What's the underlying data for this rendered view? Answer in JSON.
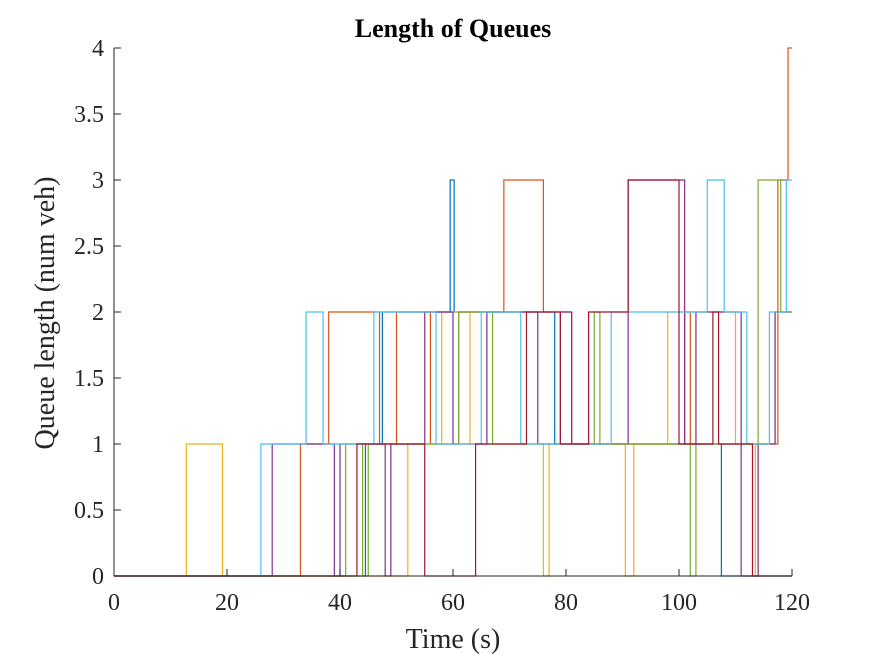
{
  "chart_data": {
    "type": "line",
    "title": "Length of Queues",
    "xlabel": "Time (s)",
    "ylabel": "Queue length (num veh)",
    "xlim": [
      0,
      120
    ],
    "ylim": [
      0,
      4
    ],
    "xticks": [
      0,
      20,
      40,
      60,
      80,
      100,
      120
    ],
    "yticks": [
      0,
      0.5,
      1,
      1.5,
      2,
      2.5,
      3,
      3.5,
      4
    ],
    "xtick_labels": [
      "0",
      "20",
      "40",
      "60",
      "80",
      "100",
      "120"
    ],
    "ytick_labels": [
      "0",
      "0.5",
      "1",
      "1.5",
      "2",
      "2.5",
      "3",
      "3.5",
      "4"
    ],
    "grid": false,
    "legend": "none",
    "step": true,
    "series": [
      {
        "color": "#0072BD",
        "points": [
          [
            0,
            0
          ],
          [
            44.5,
            0
          ],
          [
            44.5,
            1
          ],
          [
            47.5,
            1
          ],
          [
            47.5,
            2
          ],
          [
            59.5,
            2
          ],
          [
            59.5,
            3
          ],
          [
            60.2,
            3
          ],
          [
            60.2,
            2
          ],
          [
            78,
            2
          ],
          [
            78,
            1
          ],
          [
            107.5,
            1
          ],
          [
            107.5,
            0
          ],
          [
            120,
            0
          ]
        ]
      },
      {
        "color": "#D95319",
        "points": [
          [
            0,
            0
          ],
          [
            33,
            0
          ],
          [
            33,
            1
          ],
          [
            38,
            1
          ],
          [
            38,
            2
          ],
          [
            47,
            2
          ],
          [
            47,
            1
          ],
          [
            50,
            1
          ],
          [
            50,
            2
          ],
          [
            56,
            2
          ],
          [
            56,
            1
          ],
          [
            61,
            1
          ],
          [
            61,
            2
          ],
          [
            69,
            2
          ],
          [
            69,
            3
          ],
          [
            76,
            3
          ],
          [
            76,
            2
          ],
          [
            81,
            2
          ],
          [
            81,
            1
          ],
          [
            101,
            1
          ],
          [
            101,
            2
          ],
          [
            102,
            2
          ],
          [
            102,
            1
          ],
          [
            117.5,
            1
          ],
          [
            117.5,
            3
          ],
          [
            119.3,
            3
          ],
          [
            119.3,
            4
          ],
          [
            120,
            4
          ]
        ]
      },
      {
        "color": "#EDB120",
        "points": [
          [
            0,
            0
          ],
          [
            12.8,
            0
          ],
          [
            12.8,
            1
          ],
          [
            19.2,
            1
          ],
          [
            19.2,
            0
          ],
          [
            52,
            0
          ],
          [
            52,
            1
          ],
          [
            58,
            1
          ],
          [
            58,
            2
          ],
          [
            63,
            2
          ],
          [
            63,
            1
          ],
          [
            76,
            1
          ],
          [
            76,
            0
          ],
          [
            77,
            0
          ],
          [
            77,
            1
          ],
          [
            90.5,
            1
          ],
          [
            90.5,
            0
          ],
          [
            92,
            0
          ],
          [
            92,
            1
          ],
          [
            98,
            1
          ],
          [
            98,
            2
          ],
          [
            110,
            2
          ],
          [
            110,
            1
          ],
          [
            113.5,
            1
          ],
          [
            113.5,
            0
          ],
          [
            114,
            0
          ],
          [
            114,
            1
          ],
          [
            117,
            1
          ],
          [
            117,
            2
          ],
          [
            120,
            2
          ]
        ]
      },
      {
        "color": "#7E2F8E",
        "points": [
          [
            0,
            0
          ],
          [
            28,
            0
          ],
          [
            28,
            1
          ],
          [
            39,
            1
          ],
          [
            39,
            0
          ],
          [
            40,
            0
          ],
          [
            40,
            1
          ],
          [
            48,
            1
          ],
          [
            48,
            0
          ],
          [
            49,
            0
          ],
          [
            49,
            1
          ],
          [
            55,
            1
          ],
          [
            55,
            2
          ],
          [
            60,
            2
          ],
          [
            60,
            1
          ],
          [
            66,
            1
          ],
          [
            66,
            2
          ],
          [
            75,
            2
          ],
          [
            75,
            1
          ],
          [
            79,
            1
          ],
          [
            79,
            2
          ],
          [
            81,
            2
          ],
          [
            81,
            1
          ],
          [
            91,
            1
          ],
          [
            91,
            3
          ],
          [
            101,
            3
          ],
          [
            101,
            1
          ],
          [
            103,
            1
          ],
          [
            103,
            2
          ],
          [
            111,
            2
          ],
          [
            111,
            0
          ],
          [
            114,
            0
          ],
          [
            114,
            1
          ],
          [
            117,
            1
          ],
          [
            117,
            2
          ],
          [
            120,
            2
          ]
        ]
      },
      {
        "color": "#77AC30",
        "points": [
          [
            0,
            0
          ],
          [
            41,
            0
          ],
          [
            41,
            1
          ],
          [
            44,
            1
          ],
          [
            44,
            0
          ],
          [
            45,
            0
          ],
          [
            45,
            1
          ],
          [
            61,
            1
          ],
          [
            61,
            2
          ],
          [
            67,
            2
          ],
          [
            67,
            1
          ],
          [
            85,
            1
          ],
          [
            85,
            2
          ],
          [
            86,
            2
          ],
          [
            86,
            1
          ],
          [
            102,
            1
          ],
          [
            102,
            0
          ],
          [
            103,
            0
          ],
          [
            103,
            1
          ],
          [
            114,
            1
          ],
          [
            114,
            3
          ],
          [
            118,
            3
          ],
          [
            118,
            2
          ],
          [
            120,
            2
          ]
        ]
      },
      {
        "color": "#4DBEEE",
        "points": [
          [
            0,
            0
          ],
          [
            26,
            0
          ],
          [
            26,
            1
          ],
          [
            34,
            1
          ],
          [
            34,
            2
          ],
          [
            37,
            2
          ],
          [
            37,
            1
          ],
          [
            46,
            1
          ],
          [
            46,
            2
          ],
          [
            57,
            2
          ],
          [
            57,
            1
          ],
          [
            65,
            1
          ],
          [
            65,
            2
          ],
          [
            72,
            2
          ],
          [
            72,
            1
          ],
          [
            88,
            1
          ],
          [
            88,
            2
          ],
          [
            105,
            2
          ],
          [
            105,
            3
          ],
          [
            108,
            3
          ],
          [
            108,
            2
          ],
          [
            112,
            2
          ],
          [
            112,
            1
          ],
          [
            116,
            1
          ],
          [
            116,
            2
          ],
          [
            119,
            2
          ],
          [
            119,
            3
          ],
          [
            120,
            3
          ]
        ]
      },
      {
        "color": "#A2142F",
        "points": [
          [
            0,
            0
          ],
          [
            43,
            0
          ],
          [
            43,
            1
          ],
          [
            55,
            1
          ],
          [
            55,
            0
          ],
          [
            64,
            0
          ],
          [
            64,
            1
          ],
          [
            73,
            1
          ],
          [
            73,
            2
          ],
          [
            79,
            2
          ],
          [
            79,
            1
          ],
          [
            84,
            1
          ],
          [
            84,
            2
          ],
          [
            91,
            2
          ],
          [
            91,
            3
          ],
          [
            100,
            3
          ],
          [
            100,
            1
          ],
          [
            106,
            1
          ],
          [
            106,
            2
          ],
          [
            107,
            2
          ],
          [
            107,
            1
          ],
          [
            113,
            1
          ],
          [
            113,
            0
          ],
          [
            120,
            0
          ]
        ]
      }
    ]
  }
}
